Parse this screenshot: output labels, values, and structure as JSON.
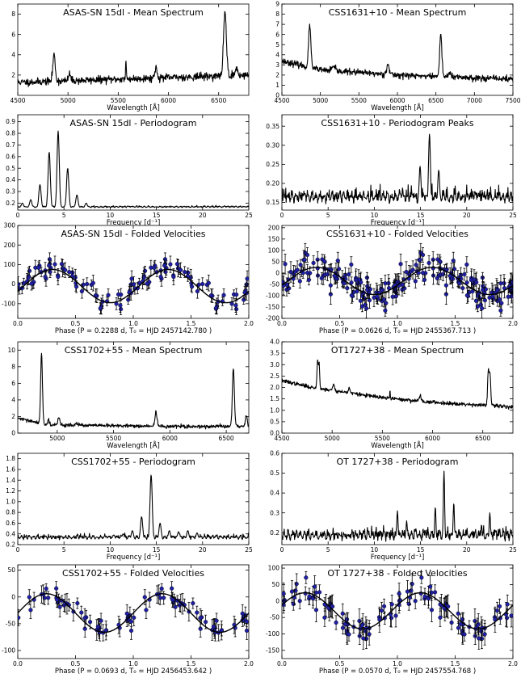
{
  "chart_data": [
    {
      "type": "line",
      "kind": "spectrum",
      "title": "ASAS-SN 15dl - Mean Spectrum",
      "xlabel": "Wavelength [Å]",
      "xlim": [
        4500,
        6800
      ],
      "ylim": [
        0,
        9
      ],
      "xticks": [
        4500,
        5000,
        5500,
        6000,
        6500
      ],
      "xtick_labels": [
        "4500",
        "5000",
        "5500",
        "6000",
        "6500"
      ],
      "yticks": [
        2,
        4,
        6,
        8
      ],
      "ytick_labels": [
        "2",
        "4",
        "6",
        "8"
      ],
      "baseline": [
        [
          4580,
          1.3
        ],
        [
          6800,
          2.0
        ]
      ],
      "noise": 0.18,
      "lines": [
        [
          4861,
          2.6,
          12
        ],
        [
          5015,
          0.7,
          10
        ],
        [
          5577,
          1.6,
          4
        ],
        [
          5876,
          1.0,
          12
        ],
        [
          6563,
          6.4,
          14
        ],
        [
          6678,
          0.7,
          12
        ]
      ],
      "seed": 11
    },
    {
      "type": "line",
      "kind": "spectrum",
      "title": "CSS1631+10 - Mean Spectrum",
      "xlabel": "Wavelength [Å]",
      "xlim": [
        4500,
        7500
      ],
      "ylim": [
        0,
        9
      ],
      "xticks": [
        4500,
        5000,
        5500,
        6000,
        6500,
        7000,
        7500
      ],
      "xtick_labels": [
        "4500",
        "5000",
        "5500",
        "6000",
        "6500",
        "7000",
        "7500"
      ],
      "yticks": [
        0,
        1,
        2,
        3,
        4,
        5,
        6,
        7,
        8,
        9
      ],
      "ytick_labels": [
        "0",
        "1",
        "2",
        "3",
        "4",
        "5",
        "6",
        "7",
        "8",
        "9"
      ],
      "baseline": [
        [
          4500,
          3.4
        ],
        [
          5000,
          2.5
        ],
        [
          6000,
          2.0
        ],
        [
          7500,
          1.6
        ]
      ],
      "noise": 0.15,
      "lines": [
        [
          4861,
          4.3,
          14
        ],
        [
          5170,
          0.4,
          20
        ],
        [
          5876,
          1.1,
          15
        ],
        [
          6563,
          4.0,
          15
        ],
        [
          6678,
          0.4,
          15
        ]
      ],
      "seed": 23
    },
    {
      "type": "line",
      "kind": "periodogram",
      "title": "ASAS-SN 15dl - Periodogram",
      "xlabel": "Frequency [d⁻¹]",
      "xlim": [
        0,
        25
      ],
      "ylim": [
        0.14,
        0.96
      ],
      "xticks": [
        0,
        5,
        10,
        15,
        20,
        25
      ],
      "xtick_labels": [
        "0",
        "5",
        "10",
        "15",
        "20",
        "25"
      ],
      "yticks": [
        0.2,
        0.3,
        0.4,
        0.5,
        0.6,
        0.7,
        0.8,
        0.9
      ],
      "ytick_labels": [
        "0.2",
        "0.3",
        "0.4",
        "0.5",
        "0.6",
        "0.7",
        "0.8",
        "0.9"
      ],
      "floor": 0.16,
      "noise": 0.005,
      "peaks": [
        [
          0.5,
          0.2
        ],
        [
          1.4,
          0.23
        ],
        [
          2.4,
          0.36
        ],
        [
          3.4,
          0.64
        ],
        [
          4.37,
          0.82
        ],
        [
          5.4,
          0.5
        ],
        [
          6.4,
          0.27
        ],
        [
          7.4,
          0.2
        ]
      ],
      "peak_width": 0.12,
      "seed": 31
    },
    {
      "type": "line",
      "kind": "periodogram",
      "title": "CSS1631+10 - Periodogram Peaks",
      "xlabel": "Frequency [d⁻¹]",
      "xlim": [
        0,
        25
      ],
      "ylim": [
        0.13,
        0.38
      ],
      "xticks": [
        0,
        5,
        10,
        15,
        20,
        25
      ],
      "xtick_labels": [
        "0",
        "5",
        "10",
        "15",
        "20",
        "25"
      ],
      "yticks": [
        0.15,
        0.2,
        0.25,
        0.3,
        0.35
      ],
      "ytick_labels": [
        "0.15",
        "0.20",
        "0.25",
        "0.30",
        "0.35"
      ],
      "floor": 0.145,
      "noise": 0.012,
      "peaks": [
        [
          14.95,
          0.245
        ],
        [
          15.97,
          0.33
        ],
        [
          16.97,
          0.235
        ],
        [
          11.4,
          0.175
        ],
        [
          13.0,
          0.17
        ]
      ],
      "peak_width": 0.1,
      "seed": 47
    },
    {
      "type": "scatter",
      "kind": "folded",
      "title": "ASAS-SN 15dl - Folded Velocities",
      "xlabel": "Phase (P =  0.2288 d,  T₀ = HJD 2457142.780 )",
      "xlim": [
        0,
        2
      ],
      "ylim": [
        -175,
        300
      ],
      "xticks": [
        0,
        0.5,
        1,
        1.5,
        2
      ],
      "xtick_labels": [
        "0.0",
        "0.5",
        "1.0",
        "1.5",
        "2.0"
      ],
      "yticks": [
        -100,
        0,
        100,
        200,
        300
      ],
      "ytick_labels": [
        "-100",
        "0",
        "100",
        "200",
        "300"
      ],
      "gamma": -10,
      "K": 85,
      "phase0": 0.05,
      "n_points": 60,
      "scatter": 30,
      "errbar": 35,
      "seed": 5
    },
    {
      "type": "scatter",
      "kind": "folded",
      "title": "CSS1631+10 - Folded Velocities",
      "xlabel": "Phase (P =  0.0626 d,  T₀ = HJD 2455367.713 )",
      "xlim": [
        0,
        2
      ],
      "ylim": [
        -200,
        210
      ],
      "xticks": [
        0,
        0.5,
        1,
        1.5,
        2
      ],
      "xtick_labels": [
        "0.0",
        "0.5",
        "1.0",
        "1.5",
        "2.0"
      ],
      "yticks": [
        -200,
        -150,
        -100,
        -50,
        0,
        50,
        100,
        150,
        200
      ],
      "ytick_labels": [
        "-200",
        "-150",
        "-100",
        "-50",
        "0",
        "50",
        "100",
        "150",
        "200"
      ],
      "gamma": -35,
      "K": 60,
      "phase0": 0.05,
      "n_points": 110,
      "scatter": 35,
      "errbar": 35,
      "seed": 17
    },
    {
      "type": "line",
      "kind": "spectrum",
      "title": "CSS1702+55 - Mean Spectrum",
      "xlabel": "Wavelength [Å]",
      "xlim": [
        4650,
        6700
      ],
      "ylim": [
        0,
        11
      ],
      "xticks": [
        5000,
        5500,
        6000,
        6500
      ],
      "xtick_labels": [
        "5000",
        "5500",
        "6000",
        "6500"
      ],
      "yticks": [
        0,
        2,
        4,
        6,
        8,
        10
      ],
      "ytick_labels": [
        "0",
        "2",
        "4",
        "6",
        "8",
        "10"
      ],
      "baseline": [
        [
          4650,
          1.8
        ],
        [
          4900,
          1.0
        ],
        [
          6000,
          0.8
        ],
        [
          6700,
          0.8
        ]
      ],
      "noise": 0.1,
      "lines": [
        [
          4861,
          8.5,
          8
        ],
        [
          4922,
          0.6,
          8
        ],
        [
          5015,
          0.9,
          8
        ],
        [
          5170,
          0.2,
          10
        ],
        [
          5876,
          1.8,
          9
        ],
        [
          6563,
          7.0,
          9
        ],
        [
          6678,
          1.4,
          8
        ]
      ],
      "seed": 29
    },
    {
      "type": "line",
      "kind": "spectrum",
      "title": "OT1727+38 - Mean Spectrum",
      "xlabel": "Wavelength [Å]",
      "xlim": [
        4500,
        6800
      ],
      "ylim": [
        0,
        4
      ],
      "xticks": [
        4500,
        5000,
        5500,
        6000,
        6500
      ],
      "xtick_labels": [
        "4500",
        "5000",
        "5500",
        "6000",
        "6500"
      ],
      "yticks": [
        0,
        0.5,
        1,
        1.5,
        2,
        2.5,
        3,
        3.5,
        4
      ],
      "ytick_labels": [
        "0.0",
        "0.5",
        "1.0",
        "1.5",
        "2.0",
        "2.5",
        "3.0",
        "3.5",
        "4.0"
      ],
      "baseline": [
        [
          4500,
          2.3
        ],
        [
          4800,
          2.0
        ],
        [
          5500,
          1.55
        ],
        [
          6000,
          1.35
        ],
        [
          6800,
          1.15
        ]
      ],
      "noise": 0.04,
      "lines": [
        [
          4855,
          1.2,
          6
        ],
        [
          4870,
          1.1,
          6
        ],
        [
          5015,
          0.3,
          8
        ],
        [
          5170,
          0.2,
          10
        ],
        [
          5577,
          0.35,
          3
        ],
        [
          5876,
          0.25,
          10
        ],
        [
          6555,
          1.5,
          7
        ],
        [
          6572,
          1.4,
          7
        ]
      ],
      "seed": 37
    },
    {
      "type": "line",
      "kind": "periodogram",
      "title": "CSS1702+55 - Periodogram",
      "xlabel": "Frequency [d⁻¹]",
      "xlim": [
        0,
        25
      ],
      "ylim": [
        0.2,
        1.9
      ],
      "xticks": [
        0,
        5,
        10,
        15,
        20,
        25
      ],
      "xtick_labels": [
        "0",
        "5",
        "10",
        "15",
        "20",
        "25"
      ],
      "yticks": [
        0.2,
        0.4,
        0.6,
        0.8,
        1.0,
        1.2,
        1.4,
        1.6,
        1.8
      ],
      "ytick_labels": [
        "0.2",
        "0.4",
        "0.6",
        "0.8",
        "1.0",
        "1.2",
        "1.4",
        "1.6",
        "1.8"
      ],
      "floor": 0.29,
      "noise": 0.03,
      "peaks": [
        [
          14.43,
          1.5
        ],
        [
          13.4,
          0.72
        ],
        [
          15.4,
          0.6
        ],
        [
          12.4,
          0.46
        ],
        [
          16.4,
          0.46
        ],
        [
          17.4,
          0.44
        ],
        [
          18.4,
          0.46
        ],
        [
          19.4,
          0.42
        ],
        [
          11.4,
          0.4
        ],
        [
          10.4,
          0.38
        ],
        [
          9.4,
          0.36
        ]
      ],
      "peak_width": 0.12,
      "seed": 53
    },
    {
      "type": "line",
      "kind": "periodogram",
      "title": "OT 1727+38 - Periodogram",
      "xlabel": "Frequency [d⁻¹]",
      "xlim": [
        0,
        25
      ],
      "ylim": [
        0.14,
        0.6
      ],
      "xticks": [
        0,
        5,
        10,
        15,
        20,
        25
      ],
      "xtick_labels": [
        "0",
        "5",
        "10",
        "15",
        "20",
        "25"
      ],
      "yticks": [
        0.2,
        0.3,
        0.4,
        0.5,
        0.6
      ],
      "ytick_labels": [
        "0.2",
        "0.3",
        "0.4",
        "0.5",
        "0.6"
      ],
      "floor": 0.155,
      "noise": 0.02,
      "peaks": [
        [
          17.54,
          0.51
        ],
        [
          12.5,
          0.31
        ],
        [
          13.5,
          0.26
        ],
        [
          16.6,
          0.33
        ],
        [
          18.6,
          0.35
        ],
        [
          22.5,
          0.3
        ],
        [
          21.6,
          0.24
        ],
        [
          14.5,
          0.22
        ],
        [
          15.5,
          0.21
        ]
      ],
      "peak_width": 0.07,
      "seed": 61
    },
    {
      "type": "scatter",
      "kind": "folded",
      "title": "CSS1702+55 - Folded Velocities",
      "xlabel": "Phase (P =  0.0693 d,  T₀ = HJD 2456453.642 )",
      "xlim": [
        0,
        2
      ],
      "ylim": [
        -115,
        60
      ],
      "xticks": [
        0,
        0.5,
        1,
        1.5,
        2
      ],
      "xtick_labels": [
        "0.0",
        "0.5",
        "1.0",
        "1.5",
        "2.0"
      ],
      "yticks": [
        -100,
        -50,
        0,
        50
      ],
      "ytick_labels": [
        "-100",
        "-50",
        "0",
        "50"
      ],
      "gamma": -30,
      "K": 36,
      "phase0": 0.0,
      "n_points": 45,
      "scatter": 10,
      "errbar": 15,
      "seed": 71
    },
    {
      "type": "scatter",
      "kind": "folded",
      "title": "OT 1727+38 - Folded Velocities",
      "xlabel": "Phase (P =  0.0570 d,  T₀ = HJD 2457554.768 )",
      "xlim": [
        0,
        2
      ],
      "ylim": [
        -175,
        110
      ],
      "xticks": [
        0,
        0.5,
        1,
        1.5,
        2
      ],
      "xtick_labels": [
        "0.0",
        "0.5",
        "1.0",
        "1.5",
        "2.0"
      ],
      "yticks": [
        -150,
        -100,
        -50,
        0,
        50,
        100
      ],
      "ytick_labels": [
        "-150",
        "-100",
        "-50",
        "0",
        "50",
        "100"
      ],
      "gamma": -30,
      "K": 55,
      "phase0": -0.05,
      "n_points": 60,
      "scatter": 22,
      "errbar": 30,
      "seed": 83
    }
  ]
}
